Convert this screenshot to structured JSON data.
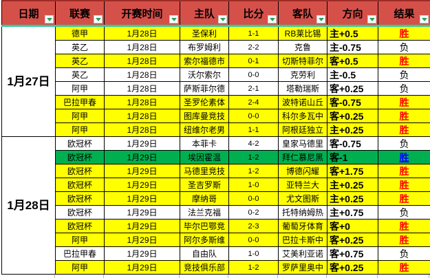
{
  "table": {
    "columns": [
      {
        "key": "date",
        "label": "日期"
      },
      {
        "key": "league",
        "label": "联赛"
      },
      {
        "key": "time",
        "label": "开赛时间"
      },
      {
        "key": "home",
        "label": "主队"
      },
      {
        "key": "score",
        "label": "比分"
      },
      {
        "key": "away",
        "label": "客队"
      },
      {
        "key": "direction",
        "label": "方向"
      },
      {
        "key": "result",
        "label": "结果"
      }
    ],
    "groups": [
      {
        "date": "1月27日",
        "rows": [
          {
            "league": "德甲",
            "time": "1月28日",
            "home": "圣保利",
            "score": "1-1",
            "away": "RB莱比锡",
            "direction": "主+0.5",
            "result": "胜",
            "highlight": "yellow"
          },
          {
            "league": "英乙",
            "time": "1月28日",
            "home": "布罗姆利",
            "score": "2-2",
            "away": "克鲁",
            "direction": "主-0.75",
            "result": "负",
            "highlight": "white"
          },
          {
            "league": "英乙",
            "time": "1月28日",
            "home": "索尔福德市",
            "score": "0-1",
            "away": "切斯特菲尔德",
            "direction": "客+0.5",
            "result": "胜",
            "highlight": "yellow"
          },
          {
            "league": "英乙",
            "time": "1月28日",
            "home": "沃尔索尔",
            "score": "0-0",
            "away": "克劳利",
            "direction": "主-0.5",
            "result": "负",
            "highlight": "white"
          },
          {
            "league": "阿甲",
            "time": "1月28日",
            "home": "萨斯菲尔德",
            "score": "2-1",
            "away": "塔勒瑞斯",
            "direction": "客+0.25",
            "result": "负",
            "highlight": "white"
          },
          {
            "league": "巴拉甲春",
            "time": "1月28日",
            "home": "圣罗伦素体育",
            "score": "2-4",
            "away": "波特诺山丘",
            "direction": "客-0.75",
            "result": "胜",
            "highlight": "yellow"
          },
          {
            "league": "阿甲",
            "time": "1月28日",
            "home": "图库曼竞技",
            "score": "0-0",
            "away": "科尔多瓦中央",
            "direction": "客+0.25",
            "result": "胜",
            "highlight": "yellow"
          },
          {
            "league": "阿甲",
            "time": "1月28日",
            "home": "纽维尔老男孩",
            "score": "1-1",
            "away": "阿根廷独立",
            "direction": "主+0.25",
            "result": "胜",
            "highlight": "yellow"
          }
        ]
      },
      {
        "date": "1月28日",
        "rows": [
          {
            "league": "欧冠杯",
            "time": "1月29日",
            "home": "本菲卡",
            "score": "4-2",
            "away": "皇家马德里",
            "direction": "客-0.75",
            "result": "负",
            "highlight": "white"
          },
          {
            "league": "欧冠杯",
            "time": "1月29日",
            "home": "埃因霍温",
            "score": "1-2",
            "away": "拜仁慕尼黑",
            "direction": "客-1",
            "result": "胜",
            "highlight": "green"
          },
          {
            "league": "欧冠杯",
            "time": "1月29日",
            "home": "马德里竞技",
            "score": "1-2",
            "away": "博德闪耀",
            "direction": "客+1.75",
            "result": "胜",
            "highlight": "yellow"
          },
          {
            "league": "欧冠杯",
            "time": "1月29日",
            "home": "圣吉罗斯",
            "score": "1-0",
            "away": "亚特兰大",
            "direction": "主+0.25",
            "result": "胜",
            "highlight": "yellow"
          },
          {
            "league": "欧冠杯",
            "time": "1月29日",
            "home": "摩纳哥",
            "score": "0-0",
            "away": "尤文图斯",
            "direction": "主+0.25",
            "result": "胜",
            "highlight": "yellow"
          },
          {
            "league": "欧冠杯",
            "time": "1月29日",
            "home": "法兰克福",
            "score": "0-2",
            "away": "托特纳姆热刺",
            "direction": "主+0.75",
            "result": "负",
            "highlight": "white"
          },
          {
            "league": "欧冠杯",
            "time": "1月29日",
            "home": "毕尔巴鄂竞技",
            "score": "2-3",
            "away": "葡萄牙体育",
            "direction": "客+0",
            "result": "胜",
            "highlight": "yellow"
          },
          {
            "league": "阿甲",
            "time": "1月29日",
            "home": "阿尔多斯维",
            "score": "0-0",
            "away": "巴拉卡斯中央",
            "direction": "客+0.25",
            "result": "胜",
            "highlight": "yellow"
          },
          {
            "league": "巴拉甲春",
            "time": "1月29日",
            "home": "自由队",
            "score": "1-0",
            "away": "艾美利亚诺",
            "direction": "客+0.75",
            "result": "负",
            "highlight": "white"
          },
          {
            "league": "阿甲",
            "time": "1月29日",
            "home": "竞技俱乐部",
            "score": "1-2",
            "away": "罗萨里奥中央",
            "direction": "客+0.25",
            "result": "胜",
            "highlight": "yellow"
          }
        ]
      }
    ]
  },
  "colors": {
    "header_red": "#d6504a",
    "row_yellow": "#ffff00",
    "row_green": "#00b050",
    "win_red": "#ff0000",
    "win_blue": "#0000ff",
    "teal_divider": "#2fcda0",
    "filter_arrow_green": "#2e9e5b"
  },
  "icons": {
    "filter": "filter-dropdown-icon"
  }
}
